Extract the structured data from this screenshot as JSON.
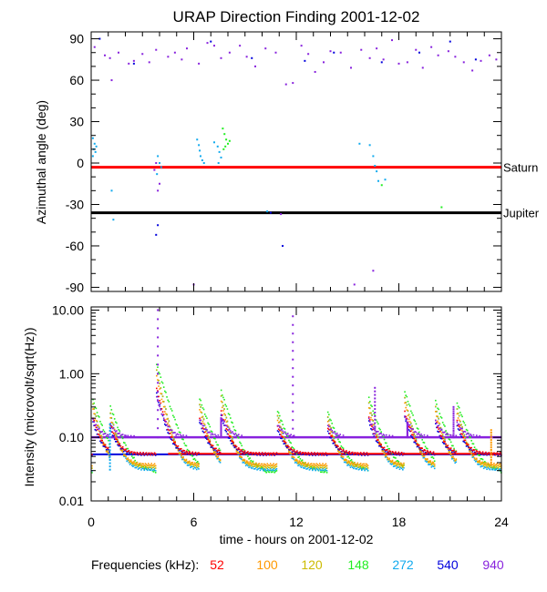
{
  "title": "URAP Direction Finding  2001-12-02",
  "chart_data": [
    {
      "type": "scatter",
      "panel": "top",
      "ylabel": "Azimuthal angle (deg)",
      "xlim": [
        0,
        24
      ],
      "ylim": [
        -93,
        95
      ],
      "yticks": [
        {
          "v": 90,
          "label": "90"
        },
        {
          "v": 60,
          "label": "60"
        },
        {
          "v": 30,
          "label": "30"
        },
        {
          "v": 0,
          "label": "0"
        },
        {
          "v": -30,
          "label": "-30"
        },
        {
          "v": -60,
          "label": "-60"
        },
        {
          "v": -90,
          "label": "-90"
        }
      ],
      "reference_lines": [
        {
          "name": "Saturn",
          "y": -3,
          "color": "#ff0000"
        },
        {
          "name": "Jupiter",
          "y": -36,
          "color": "#000000"
        }
      ],
      "series": [
        {
          "freq": "940",
          "points": [
            [
              0.2,
              84
            ],
            [
              0.8,
              78
            ],
            [
              1.1,
              76
            ],
            [
              1.6,
              80
            ],
            [
              2.2,
              72
            ],
            [
              2.5,
              74
            ],
            [
              3.0,
              79
            ],
            [
              3.4,
              73
            ],
            [
              3.8,
              82
            ],
            [
              4.5,
              77
            ],
            [
              4.9,
              80
            ],
            [
              5.3,
              75
            ],
            [
              5.6,
              83
            ],
            [
              6.3,
              72
            ],
            [
              6.8,
              87
            ],
            [
              7.2,
              85
            ],
            [
              7.6,
              76
            ],
            [
              8.1,
              80
            ],
            [
              8.7,
              85
            ],
            [
              9.1,
              77
            ],
            [
              9.6,
              70
            ],
            [
              10.2,
              83
            ],
            [
              10.8,
              80
            ],
            [
              11.4,
              57
            ],
            [
              11.8,
              58
            ],
            [
              12.3,
              85
            ],
            [
              12.7,
              79
            ],
            [
              13.1,
              66
            ],
            [
              13.6,
              73
            ],
            [
              14.0,
              81
            ],
            [
              14.6,
              80
            ],
            [
              15.2,
              69
            ],
            [
              15.8,
              82
            ],
            [
              16.3,
              76
            ],
            [
              16.7,
              83
            ],
            [
              17.1,
              75
            ],
            [
              17.6,
              89
            ],
            [
              18.0,
              72
            ],
            [
              18.5,
              73
            ],
            [
              19.0,
              82
            ],
            [
              19.4,
              69
            ],
            [
              19.9,
              84
            ],
            [
              20.3,
              78
            ],
            [
              20.9,
              81
            ],
            [
              21.3,
              77
            ],
            [
              21.8,
              73
            ],
            [
              22.3,
              67
            ],
            [
              22.8,
              74
            ],
            [
              23.3,
              78
            ],
            [
              23.7,
              75
            ],
            [
              1.2,
              60
            ],
            [
              3.9,
              -20
            ],
            [
              4.0,
              -15
            ],
            [
              3.7,
              -5
            ],
            [
              3.8,
              0
            ],
            [
              6.0,
              -88
            ],
            [
              15.4,
              -88
            ],
            [
              16.5,
              -78
            ],
            [
              11.1,
              -37
            ]
          ]
        },
        {
          "freq": "540",
          "points": [
            [
              0.5,
              90
            ],
            [
              2.5,
              72
            ],
            [
              7.0,
              88
            ],
            [
              9.4,
              76
            ],
            [
              12.5,
              74
            ],
            [
              14.2,
              80
            ],
            [
              17.0,
              73
            ],
            [
              19.2,
              80
            ],
            [
              21.0,
              88
            ],
            [
              22.5,
              75
            ],
            [
              3.9,
              -45
            ],
            [
              3.8,
              -52
            ],
            [
              10.5,
              -36
            ],
            [
              11.2,
              -60
            ]
          ]
        },
        {
          "freq": "272",
          "points": [
            [
              0.1,
              18
            ],
            [
              0.2,
              14
            ],
            [
              0.15,
              10
            ],
            [
              0.25,
              8
            ],
            [
              0.3,
              12
            ],
            [
              0.1,
              5
            ],
            [
              3.9,
              5
            ],
            [
              4.0,
              0
            ],
            [
              4.1,
              -3
            ],
            [
              3.85,
              -8
            ],
            [
              6.2,
              17
            ],
            [
              6.3,
              13
            ],
            [
              6.35,
              9
            ],
            [
              6.4,
              5
            ],
            [
              6.5,
              2
            ],
            [
              6.6,
              0
            ],
            [
              7.2,
              15
            ],
            [
              7.4,
              12
            ],
            [
              7.5,
              8
            ],
            [
              7.6,
              4
            ],
            [
              7.45,
              0
            ],
            [
              15.7,
              14
            ],
            [
              16.3,
              13
            ],
            [
              16.5,
              5
            ],
            [
              16.6,
              -2
            ],
            [
              16.7,
              -6
            ],
            [
              16.8,
              -13
            ],
            [
              17.2,
              -12
            ],
            [
              1.2,
              -20
            ],
            [
              1.3,
              -41
            ],
            [
              10.3,
              -35
            ]
          ]
        },
        {
          "freq": "148",
          "points": [
            [
              7.7,
              25
            ],
            [
              7.8,
              21
            ],
            [
              7.9,
              17
            ],
            [
              8.0,
              14
            ],
            [
              7.75,
              10
            ],
            [
              7.85,
              12
            ],
            [
              8.1,
              16
            ],
            [
              17.0,
              -16
            ],
            [
              20.5,
              -32
            ]
          ]
        }
      ]
    },
    {
      "type": "scatter",
      "panel": "bottom",
      "ylabel": "Intensity (microvolt/sqrt(Hz))",
      "xlabel": "time - hours on 2001-12-02",
      "xlim": [
        0,
        24
      ],
      "ylim_log10": [
        -2,
        1.05
      ],
      "xticks": [
        {
          "v": 0,
          "label": "0"
        },
        {
          "v": 6,
          "label": "6"
        },
        {
          "v": 12,
          "label": "12"
        },
        {
          "v": 18,
          "label": "18"
        },
        {
          "v": 24,
          "label": "24"
        }
      ],
      "yticks": [
        {
          "v": 10,
          "label": "10.00"
        },
        {
          "v": 1,
          "label": "1.00"
        },
        {
          "v": 0.1,
          "label": "0.10"
        },
        {
          "v": 0.01,
          "label": "0.01"
        }
      ],
      "baselines": [
        {
          "freq": "52",
          "y": 0.055
        },
        {
          "freq": "100",
          "y": 0.037
        },
        {
          "freq": "120",
          "y": 0.034
        },
        {
          "freq": "148",
          "y": 0.029
        },
        {
          "freq": "272",
          "y": 0.031
        },
        {
          "freq": "540",
          "y": 0.054
        },
        {
          "freq": "940",
          "y": 0.1
        }
      ],
      "bursts": [
        {
          "t": 0.1,
          "h": 0.3
        },
        {
          "t": 1.1,
          "h": 0.2
        },
        {
          "t": 3.8,
          "h": 1.2
        },
        {
          "t": 6.3,
          "h": 0.35
        },
        {
          "t": 7.6,
          "h": 0.4
        },
        {
          "t": 10.9,
          "h": 0.2
        },
        {
          "t": 13.8,
          "h": 0.2
        },
        {
          "t": 16.2,
          "h": 0.35
        },
        {
          "t": 18.3,
          "h": 0.45
        },
        {
          "t": 20.1,
          "h": 0.3
        },
        {
          "t": 21.4,
          "h": 0.25
        }
      ],
      "spikes": [
        {
          "freq": "940",
          "t": 3.9,
          "peak": 10.0
        },
        {
          "freq": "272",
          "t": 1.1,
          "peak": 0.16
        },
        {
          "freq": "940",
          "t": 7.6,
          "peak": 0.2
        },
        {
          "freq": "940",
          "t": 11.8,
          "peak": 8.0
        },
        {
          "freq": "940",
          "t": 16.6,
          "peak": 0.6
        },
        {
          "freq": "940",
          "t": 18.5,
          "peak": 0.17
        },
        {
          "freq": "940",
          "t": 21.2,
          "peak": 0.3
        },
        {
          "freq": "100",
          "t": 23.4,
          "peak": 0.13
        }
      ]
    }
  ],
  "legend": {
    "label": "Frequencies (kHz):",
    "items": [
      {
        "freq": "52",
        "label": "52",
        "color": "#ff0000"
      },
      {
        "freq": "100",
        "label": "100",
        "color": "#ff9900"
      },
      {
        "freq": "120",
        "label": "120",
        "color": "#ccbb00"
      },
      {
        "freq": "148",
        "label": "148",
        "color": "#22ee22"
      },
      {
        "freq": "272",
        "label": "272",
        "color": "#11aaee"
      },
      {
        "freq": "540",
        "label": "540",
        "color": "#0000dd"
      },
      {
        "freq": "940",
        "label": "940",
        "color": "#8822dd"
      }
    ]
  }
}
